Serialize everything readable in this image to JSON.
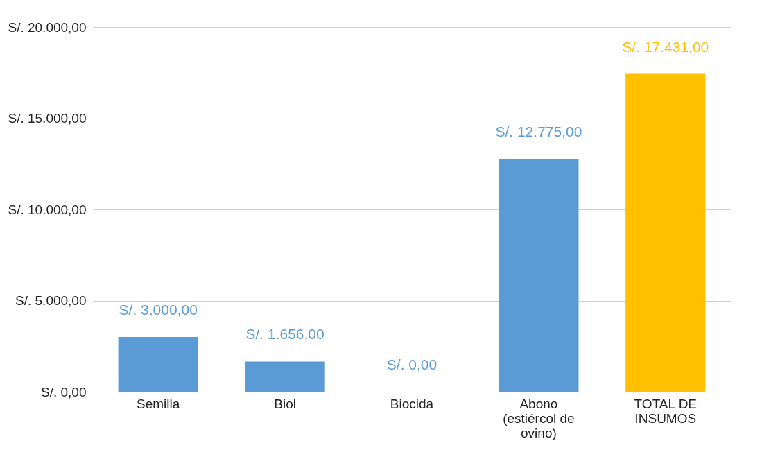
{
  "chart_data": {
    "type": "bar",
    "categories": [
      "Semilla",
      "Biol",
      "Biocida",
      "Abono (estiércol de ovino)",
      "TOTAL DE INSUMOS"
    ],
    "values": [
      3000,
      1656,
      0,
      12775,
      17431
    ],
    "colors": [
      "#5b9bd5",
      "#5b9bd5",
      "#5b9bd5",
      "#5b9bd5",
      "#ffc000"
    ],
    "value_labels": [
      "S/. 3.000,00",
      "S/. 1.656,00",
      "S/. 0,00",
      "S/. 12.775,00",
      "S/. 17.431,00"
    ],
    "ylim": [
      0,
      20000
    ],
    "yticks": [
      {
        "value": 0,
        "label": "S/. 0,00"
      },
      {
        "value": 5000,
        "label": "S/. 5.000,00"
      },
      {
        "value": 10000,
        "label": "S/. 10.000,00"
      },
      {
        "value": 15000,
        "label": "S/. 15.000,00"
      },
      {
        "value": 20000,
        "label": "S/. 20.000,00"
      }
    ],
    "grid": "y",
    "legend": false
  }
}
